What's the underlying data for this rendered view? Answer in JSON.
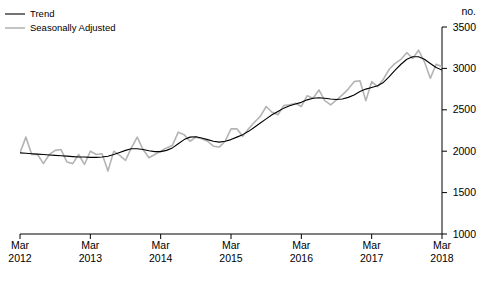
{
  "chart_data": {
    "type": "line",
    "y_label": "no.",
    "categories": [
      "Mar 2012",
      null,
      null,
      null,
      null,
      null,
      null,
      null,
      null,
      null,
      null,
      null,
      "Mar 2013",
      null,
      null,
      null,
      null,
      null,
      null,
      null,
      null,
      null,
      null,
      null,
      "Mar 2014",
      null,
      null,
      null,
      null,
      null,
      null,
      null,
      null,
      null,
      null,
      null,
      "Mar 2015",
      null,
      null,
      null,
      null,
      null,
      null,
      null,
      null,
      null,
      null,
      null,
      "Mar 2016",
      null,
      null,
      null,
      null,
      null,
      null,
      null,
      null,
      null,
      null,
      null,
      "Mar 2017",
      null,
      null,
      null,
      null,
      null,
      null,
      null,
      null,
      null,
      null,
      null,
      "Mar 2018"
    ],
    "series": [
      {
        "name": "Trend",
        "color": "#000000",
        "values": [
          1980,
          1975,
          1970,
          1965,
          1960,
          1955,
          1950,
          1945,
          1940,
          1935,
          1930,
          1930,
          1925,
          1925,
          1930,
          1940,
          1960,
          1985,
          2010,
          2030,
          2030,
          2020,
          2005,
          1995,
          1995,
          2010,
          2040,
          2090,
          2140,
          2170,
          2175,
          2160,
          2140,
          2120,
          2110,
          2120,
          2140,
          2170,
          2200,
          2240,
          2290,
          2340,
          2390,
          2440,
          2480,
          2520,
          2550,
          2570,
          2590,
          2620,
          2640,
          2645,
          2640,
          2630,
          2625,
          2630,
          2650,
          2680,
          2720,
          2750,
          2770,
          2790,
          2830,
          2900,
          2980,
          3050,
          3110,
          3140,
          3140,
          3110,
          3060,
          3010,
          2980
        ]
      },
      {
        "name": "Seasonally Adjusted",
        "color": "#b4b4b4",
        "values": [
          1980,
          2170,
          1960,
          1960,
          1850,
          1960,
          2010,
          2020,
          1870,
          1850,
          1960,
          1840,
          2000,
          1960,
          1970,
          1760,
          2000,
          1950,
          1890,
          2040,
          2170,
          2020,
          1920,
          1960,
          2000,
          2040,
          2070,
          2230,
          2200,
          2120,
          2170,
          2150,
          2120,
          2060,
          2050,
          2120,
          2270,
          2270,
          2180,
          2270,
          2350,
          2420,
          2540,
          2470,
          2440,
          2550,
          2560,
          2580,
          2540,
          2670,
          2640,
          2740,
          2610,
          2560,
          2620,
          2680,
          2750,
          2840,
          2850,
          2610,
          2840,
          2780,
          2870,
          2990,
          3060,
          3110,
          3190,
          3120,
          3220,
          3080,
          2880,
          3050,
          3020
        ]
      }
    ],
    "ylim": [
      1000,
      3500
    ],
    "yticks": [
      1000,
      1500,
      2000,
      2500,
      3000,
      3500
    ],
    "grid": false,
    "legend": "top-left"
  }
}
